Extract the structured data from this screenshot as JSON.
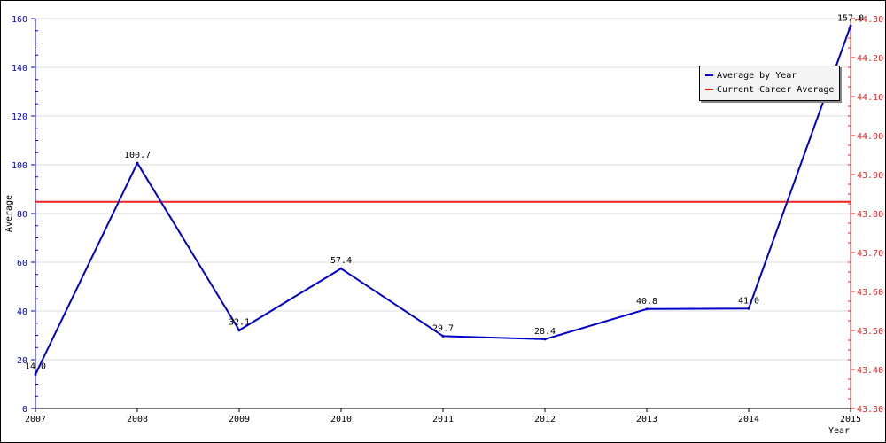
{
  "chart_data": {
    "type": "line",
    "title": "",
    "xlabel": "Year",
    "ylabel": "Average",
    "x": [
      "2007",
      "2008",
      "2009",
      "2010",
      "2011",
      "2012",
      "2013",
      "2014",
      "2015"
    ],
    "ylim": [
      0,
      160
    ],
    "y_ticks": [
      "0",
      "20",
      "40",
      "60",
      "80",
      "100",
      "120",
      "140",
      "160"
    ],
    "y2lim": [
      43.3,
      44.3
    ],
    "y2_ticks": [
      "43.30",
      "43.40",
      "43.50",
      "43.60",
      "43.70",
      "43.80",
      "43.90",
      "44.00",
      "44.10",
      "44.20",
      "44.30"
    ],
    "grid": true,
    "legend_position": "top-right",
    "series": [
      {
        "name": "Average by Year",
        "color": "#0000cc",
        "axis": "left",
        "values": [
          14.0,
          100.7,
          32.1,
          57.4,
          29.7,
          28.4,
          40.8,
          41.0,
          157.0
        ],
        "labels": [
          "14.0",
          "100.7",
          "32.1",
          "57.4",
          "29.7",
          "28.4",
          "40.8",
          "41.0",
          "157.0"
        ]
      },
      {
        "name": "Current Career Average",
        "color": "#ee2222",
        "axis": "right",
        "value": 43.83
      }
    ],
    "left_axis_color": "#0000cc",
    "right_axis_color": "#ee2222",
    "grid_color": "#dddddd"
  }
}
